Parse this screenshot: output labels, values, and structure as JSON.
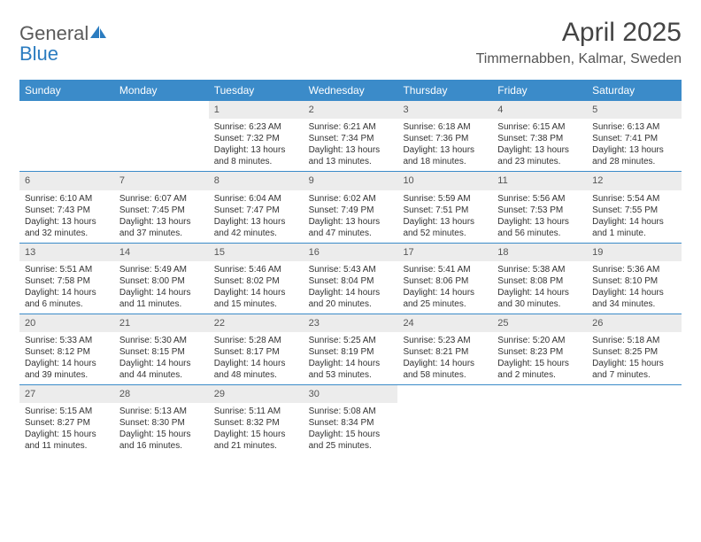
{
  "logo": {
    "word1": "General",
    "word2": "Blue"
  },
  "title": "April 2025",
  "location": "Timmernabben, Kalmar, Sweden",
  "colors": {
    "header_bg": "#3b8bc9",
    "header_text": "#ffffff",
    "daynum_bg": "#ececec",
    "rule": "#3b8bc9",
    "text": "#333333",
    "logo_gray": "#5a5a5a",
    "logo_blue": "#2b7cc0",
    "background": "#ffffff"
  },
  "fonts": {
    "title_size": 30,
    "location_size": 16,
    "header_size": 12,
    "cell_size": 10,
    "daynum_size": 11
  },
  "dayNames": [
    "Sunday",
    "Monday",
    "Tuesday",
    "Wednesday",
    "Thursday",
    "Friday",
    "Saturday"
  ],
  "weeks": [
    [
      {
        "n": "",
        "lines": []
      },
      {
        "n": "",
        "lines": []
      },
      {
        "n": "1",
        "lines": [
          "Sunrise: 6:23 AM",
          "Sunset: 7:32 PM",
          "Daylight: 13 hours and 8 minutes."
        ]
      },
      {
        "n": "2",
        "lines": [
          "Sunrise: 6:21 AM",
          "Sunset: 7:34 PM",
          "Daylight: 13 hours and 13 minutes."
        ]
      },
      {
        "n": "3",
        "lines": [
          "Sunrise: 6:18 AM",
          "Sunset: 7:36 PM",
          "Daylight: 13 hours and 18 minutes."
        ]
      },
      {
        "n": "4",
        "lines": [
          "Sunrise: 6:15 AM",
          "Sunset: 7:38 PM",
          "Daylight: 13 hours and 23 minutes."
        ]
      },
      {
        "n": "5",
        "lines": [
          "Sunrise: 6:13 AM",
          "Sunset: 7:41 PM",
          "Daylight: 13 hours and 28 minutes."
        ]
      }
    ],
    [
      {
        "n": "6",
        "lines": [
          "Sunrise: 6:10 AM",
          "Sunset: 7:43 PM",
          "Daylight: 13 hours and 32 minutes."
        ]
      },
      {
        "n": "7",
        "lines": [
          "Sunrise: 6:07 AM",
          "Sunset: 7:45 PM",
          "Daylight: 13 hours and 37 minutes."
        ]
      },
      {
        "n": "8",
        "lines": [
          "Sunrise: 6:04 AM",
          "Sunset: 7:47 PM",
          "Daylight: 13 hours and 42 minutes."
        ]
      },
      {
        "n": "9",
        "lines": [
          "Sunrise: 6:02 AM",
          "Sunset: 7:49 PM",
          "Daylight: 13 hours and 47 minutes."
        ]
      },
      {
        "n": "10",
        "lines": [
          "Sunrise: 5:59 AM",
          "Sunset: 7:51 PM",
          "Daylight: 13 hours and 52 minutes."
        ]
      },
      {
        "n": "11",
        "lines": [
          "Sunrise: 5:56 AM",
          "Sunset: 7:53 PM",
          "Daylight: 13 hours and 56 minutes."
        ]
      },
      {
        "n": "12",
        "lines": [
          "Sunrise: 5:54 AM",
          "Sunset: 7:55 PM",
          "Daylight: 14 hours and 1 minute."
        ]
      }
    ],
    [
      {
        "n": "13",
        "lines": [
          "Sunrise: 5:51 AM",
          "Sunset: 7:58 PM",
          "Daylight: 14 hours and 6 minutes."
        ]
      },
      {
        "n": "14",
        "lines": [
          "Sunrise: 5:49 AM",
          "Sunset: 8:00 PM",
          "Daylight: 14 hours and 11 minutes."
        ]
      },
      {
        "n": "15",
        "lines": [
          "Sunrise: 5:46 AM",
          "Sunset: 8:02 PM",
          "Daylight: 14 hours and 15 minutes."
        ]
      },
      {
        "n": "16",
        "lines": [
          "Sunrise: 5:43 AM",
          "Sunset: 8:04 PM",
          "Daylight: 14 hours and 20 minutes."
        ]
      },
      {
        "n": "17",
        "lines": [
          "Sunrise: 5:41 AM",
          "Sunset: 8:06 PM",
          "Daylight: 14 hours and 25 minutes."
        ]
      },
      {
        "n": "18",
        "lines": [
          "Sunrise: 5:38 AM",
          "Sunset: 8:08 PM",
          "Daylight: 14 hours and 30 minutes."
        ]
      },
      {
        "n": "19",
        "lines": [
          "Sunrise: 5:36 AM",
          "Sunset: 8:10 PM",
          "Daylight: 14 hours and 34 minutes."
        ]
      }
    ],
    [
      {
        "n": "20",
        "lines": [
          "Sunrise: 5:33 AM",
          "Sunset: 8:12 PM",
          "Daylight: 14 hours and 39 minutes."
        ]
      },
      {
        "n": "21",
        "lines": [
          "Sunrise: 5:30 AM",
          "Sunset: 8:15 PM",
          "Daylight: 14 hours and 44 minutes."
        ]
      },
      {
        "n": "22",
        "lines": [
          "Sunrise: 5:28 AM",
          "Sunset: 8:17 PM",
          "Daylight: 14 hours and 48 minutes."
        ]
      },
      {
        "n": "23",
        "lines": [
          "Sunrise: 5:25 AM",
          "Sunset: 8:19 PM",
          "Daylight: 14 hours and 53 minutes."
        ]
      },
      {
        "n": "24",
        "lines": [
          "Sunrise: 5:23 AM",
          "Sunset: 8:21 PM",
          "Daylight: 14 hours and 58 minutes."
        ]
      },
      {
        "n": "25",
        "lines": [
          "Sunrise: 5:20 AM",
          "Sunset: 8:23 PM",
          "Daylight: 15 hours and 2 minutes."
        ]
      },
      {
        "n": "26",
        "lines": [
          "Sunrise: 5:18 AM",
          "Sunset: 8:25 PM",
          "Daylight: 15 hours and 7 minutes."
        ]
      }
    ],
    [
      {
        "n": "27",
        "lines": [
          "Sunrise: 5:15 AM",
          "Sunset: 8:27 PM",
          "Daylight: 15 hours and 11 minutes."
        ]
      },
      {
        "n": "28",
        "lines": [
          "Sunrise: 5:13 AM",
          "Sunset: 8:30 PM",
          "Daylight: 15 hours and 16 minutes."
        ]
      },
      {
        "n": "29",
        "lines": [
          "Sunrise: 5:11 AM",
          "Sunset: 8:32 PM",
          "Daylight: 15 hours and 21 minutes."
        ]
      },
      {
        "n": "30",
        "lines": [
          "Sunrise: 5:08 AM",
          "Sunset: 8:34 PM",
          "Daylight: 15 hours and 25 minutes."
        ]
      },
      {
        "n": "",
        "lines": []
      },
      {
        "n": "",
        "lines": []
      },
      {
        "n": "",
        "lines": []
      }
    ]
  ]
}
